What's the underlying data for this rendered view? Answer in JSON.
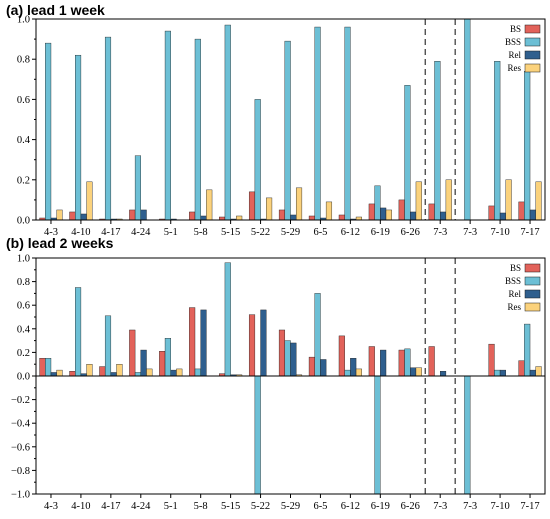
{
  "colors": {
    "BS": "#e2625a",
    "BSS": "#6cbfd5",
    "Rel": "#2f5f8e",
    "Res": "#fbd27c"
  },
  "chart_data": [
    {
      "type": "bar",
      "title": "(a) lead 1 week",
      "categories": [
        "4-3",
        "4-10",
        "4-17",
        "4-24",
        "5-1",
        "5-8",
        "5-15",
        "5-22",
        "5-29",
        "6-5",
        "6-12",
        "6-19",
        "6-26",
        "7-3",
        "7-3",
        "7-10",
        "7-17"
      ],
      "ylim": [
        0,
        1.0
      ],
      "yticks": [
        0.0,
        0.2,
        0.4,
        0.6,
        0.8,
        1.0
      ],
      "ytick_labels": [
        "0.0",
        "0.2",
        "0.4",
        "0.6",
        "0.8",
        "1.0"
      ],
      "dashed_after_index": [
        12,
        13
      ],
      "legend_position": "top-right",
      "series": [
        {
          "name": "BS",
          "values": [
            0.01,
            0.04,
            0.005,
            0.05,
            0.005,
            0.04,
            0.015,
            0.14,
            0.05,
            0.02,
            0.025,
            0.08,
            0.1,
            0.08,
            0.0,
            0.07,
            0.09
          ]
        },
        {
          "name": "BSS",
          "values": [
            0.88,
            0.82,
            0.91,
            0.32,
            0.94,
            0.9,
            0.97,
            0.6,
            0.89,
            0.96,
            0.96,
            0.17,
            0.67,
            0.79,
            1.0,
            0.79,
            0.74
          ]
        },
        {
          "name": "Rel",
          "values": [
            0.01,
            0.03,
            0.005,
            0.05,
            0.005,
            0.02,
            0.005,
            0.005,
            0.025,
            0.01,
            0.005,
            0.06,
            0.04,
            0.04,
            0.0,
            0.035,
            0.05
          ]
        },
        {
          "name": "Res",
          "values": [
            0.05,
            0.19,
            0.005,
            0.0,
            0.0,
            0.15,
            0.02,
            0.11,
            0.16,
            0.09,
            0.015,
            0.05,
            0.19,
            0.2,
            0.0,
            0.2,
            0.19
          ]
        }
      ]
    },
    {
      "type": "bar",
      "title": "(b) lead 2 weeks",
      "categories": [
        "4-3",
        "4-10",
        "4-17",
        "4-24",
        "5-1",
        "5-8",
        "5-15",
        "5-22",
        "5-29",
        "6-5",
        "6-12",
        "6-19",
        "6-26",
        "7-3",
        "7-3",
        "7-10",
        "7-17"
      ],
      "ylim": [
        -1.0,
        1.0
      ],
      "yticks": [
        -1.0,
        -0.8,
        -0.6,
        -0.4,
        -0.2,
        0.0,
        0.2,
        0.4,
        0.6,
        0.8,
        1.0
      ],
      "ytick_labels": [
        "−1.0",
        "−0.8",
        "−0.6",
        "−0.4",
        "−0.2",
        "0.0",
        "0.2",
        "0.4",
        "0.6",
        "0.8",
        "1.0"
      ],
      "dashed_after_index": [
        12,
        13
      ],
      "legend_position": "top-right",
      "series": [
        {
          "name": "BS",
          "values": [
            0.15,
            0.04,
            0.08,
            0.39,
            0.21,
            0.58,
            0.02,
            0.52,
            0.39,
            0.16,
            0.34,
            0.25,
            0.22,
            0.25,
            0.0,
            0.27,
            0.13
          ]
        },
        {
          "name": "BSS",
          "values": [
            0.15,
            0.75,
            0.51,
            0.03,
            0.32,
            0.06,
            0.96,
            -1.0,
            0.3,
            0.7,
            0.05,
            -1.0,
            0.23,
            0.0,
            -1.0,
            0.05,
            0.44
          ]
        },
        {
          "name": "Rel",
          "values": [
            0.03,
            0.02,
            0.03,
            0.22,
            0.05,
            0.56,
            0.01,
            0.56,
            0.28,
            0.14,
            0.15,
            0.22,
            0.07,
            0.04,
            0.0,
            0.05,
            0.05
          ]
        },
        {
          "name": "Res",
          "values": [
            0.05,
            0.1,
            0.1,
            0.06,
            0.06,
            0.0,
            0.01,
            0.0,
            0.01,
            0.0,
            0.06,
            0.0,
            0.07,
            0.0,
            0.0,
            0.0,
            0.08
          ]
        }
      ]
    }
  ]
}
